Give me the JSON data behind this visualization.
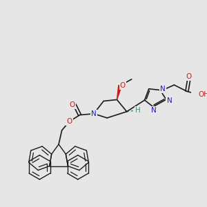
{
  "bg_color": "#e6e6e6",
  "bond_color": "#1a1a1a",
  "N_color": "#1a1acc",
  "O_color": "#cc1a1a",
  "H_color": "#3a8a8a",
  "figsize": [
    3.0,
    3.0
  ],
  "dpi": 100,
  "xlim": [
    0,
    300
  ],
  "ylim": [
    0,
    300
  ]
}
